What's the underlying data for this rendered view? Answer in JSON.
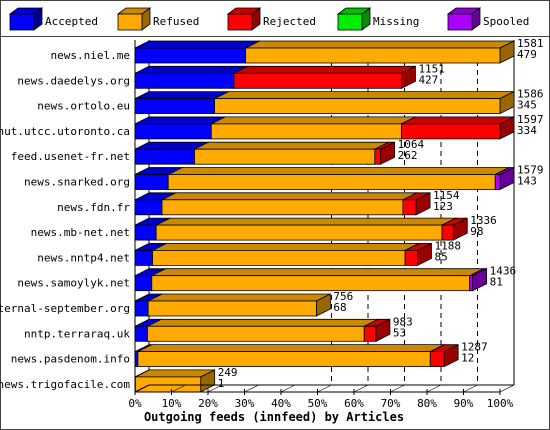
{
  "chart_data": {
    "type": "bar",
    "stacked": true,
    "orientation": "horizontal",
    "xlabel": "Outgoing feeds (innfeed) by Articles",
    "xlim": [
      0,
      100
    ],
    "x_ticks": [
      "0%",
      "10%",
      "20%",
      "30%",
      "40%",
      "50%",
      "60%",
      "70%",
      "80%",
      "90%",
      "100%"
    ],
    "gridlines": [
      50,
      60,
      70,
      80,
      90
    ],
    "legend_position": "top",
    "series": [
      {
        "name": "Accepted",
        "color": "#0000ff"
      },
      {
        "name": "Refused",
        "color": "#ffaa00"
      },
      {
        "name": "Rejected",
        "color": "#ff0000"
      },
      {
        "name": "Missing",
        "color": "#00ee00"
      },
      {
        "name": "Spooled",
        "color": "#aa00ff"
      }
    ],
    "categories": [
      "news.niel.me",
      "news.daedelys.org",
      "news.ortolo.eu",
      "nut.utcc.utoronto.ca",
      "feed.usenet-fr.net",
      "news.snarked.org",
      "news.fdn.fr",
      "news.mb-net.net",
      "news.nntp4.net",
      "news.samoylyk.net",
      "eternal-september.org",
      "nntp.terraraq.uk",
      "news.pasdenom.info",
      "news.trigofacile.com"
    ],
    "label_top": [
      "1581",
      "1151",
      "1586",
      "1597",
      "1064",
      "1579",
      "1154",
      "1336",
      "1188",
      "1436",
      "756",
      "983",
      "1287",
      "249"
    ],
    "label_bottom": [
      "479",
      "427",
      "345",
      "334",
      "262",
      "143",
      "123",
      "98",
      "85",
      "81",
      "68",
      "53",
      "12",
      "1"
    ],
    "segments": [
      [
        [
          0,
          30.3
        ],
        [
          1,
          69.7
        ]
      ],
      [
        [
          0,
          27.1
        ],
        [
          2,
          45.9
        ]
      ],
      [
        [
          0,
          21.8
        ],
        [
          1,
          78.2
        ]
      ],
      [
        [
          0,
          20.9
        ],
        [
          1,
          52.1
        ],
        [
          2,
          27.0
        ]
      ],
      [
        [
          0,
          16.3
        ],
        [
          1,
          49.4
        ],
        [
          2,
          1.6
        ]
      ],
      [
        [
          0,
          9.1
        ],
        [
          1,
          89.6
        ],
        [
          4,
          1.3
        ]
      ],
      [
        [
          0,
          7.4
        ],
        [
          1,
          66.0
        ],
        [
          2,
          3.6
        ]
      ],
      [
        [
          0,
          5.8
        ],
        [
          1,
          78.3
        ],
        [
          2,
          3.1
        ]
      ],
      [
        [
          0,
          4.8
        ],
        [
          1,
          69.2
        ],
        [
          2,
          3.4
        ]
      ],
      [
        [
          0,
          4.6
        ],
        [
          1,
          87.1
        ],
        [
          4,
          0.8
        ]
      ],
      [
        [
          0,
          3.6
        ],
        [
          1,
          46.1
        ]
      ],
      [
        [
          0,
          3.4
        ],
        [
          1,
          59.4
        ],
        [
          2,
          3.2
        ]
      ],
      [
        [
          0,
          0.8
        ],
        [
          1,
          80.1
        ],
        [
          2,
          3.8
        ]
      ],
      [
        [
          0,
          0.1
        ],
        [
          1,
          17.9
        ]
      ]
    ]
  }
}
